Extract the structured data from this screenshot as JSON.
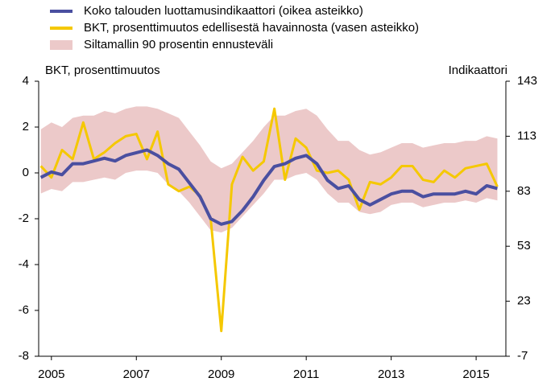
{
  "chart_data": {
    "type": "line",
    "y_label": "BKT, prosenttimuutos",
    "y2_label": "Indikaattori",
    "x": [
      2004.75,
      2005,
      2005.25,
      2005.5,
      2005.75,
      2006,
      2006.25,
      2006.5,
      2006.75,
      2007,
      2007.25,
      2007.5,
      2007.75,
      2008,
      2008.25,
      2008.5,
      2008.75,
      2009,
      2009.25,
      2009.5,
      2009.75,
      2010,
      2010.25,
      2010.5,
      2010.75,
      2011,
      2011.25,
      2011.5,
      2011.75,
      2012,
      2012.25,
      2012.5,
      2012.75,
      2013,
      2013.25,
      2013.5,
      2013.75,
      2014,
      2014.25,
      2014.5,
      2014.75,
      2015,
      2015.25,
      2015.5
    ],
    "xlim": [
      2004.7,
      2015.7
    ],
    "xticks": [
      2005,
      2007,
      2009,
      2011,
      2013,
      2015
    ],
    "ylim": [
      -8,
      4
    ],
    "yticks": [
      -8,
      -6,
      -4,
      -2,
      0,
      2,
      4
    ],
    "y2lim": [
      -7,
      143
    ],
    "y2ticks": [
      -7,
      23,
      53,
      83,
      113,
      143
    ],
    "series": [
      {
        "name": "Koko talouden luottamusindikaattori (oikea asteikko)",
        "color": "#4a4fa0",
        "axis": "y2",
        "values": [
          90.5,
          93.5,
          92,
          98,
          98,
          99.5,
          101,
          99.5,
          102.5,
          104,
          105.5,
          102.5,
          98,
          95,
          87.5,
          80,
          68,
          65,
          66.5,
          72.5,
          80,
          89,
          96.5,
          98,
          101,
          102.5,
          98,
          89,
          84.5,
          86,
          78.5,
          75.5,
          78.5,
          81.5,
          83,
          83,
          80,
          81.5,
          81.5,
          81.5,
          83,
          81.5,
          86,
          84.5
        ]
      },
      {
        "name": "BKT, prosenttimuutos edellisestä havainnosta (vasen asteikko)",
        "color": "#f5c800",
        "values": [
          0.3,
          -0.2,
          1.0,
          0.6,
          2.2,
          0.6,
          0.9,
          1.3,
          1.6,
          1.7,
          0.6,
          1.8,
          -0.5,
          -0.8,
          -0.6,
          -1.0,
          -2.0,
          -6.9,
          -0.5,
          0.7,
          0.1,
          0.5,
          2.8,
          -0.3,
          1.5,
          1.1,
          0.1,
          0.0,
          0.1,
          -0.3,
          -1.6,
          -0.4,
          -0.5,
          -0.2,
          0.3,
          0.3,
          -0.3,
          -0.4,
          0.1,
          -0.2,
          0.2,
          0.3,
          0.4,
          -0.6
        ]
      },
      {
        "name": "Siltamallin 90 prosentin ennusteväli",
        "color": "#ecc9c9",
        "upper": [
          1.9,
          2.2,
          2.0,
          2.4,
          2.5,
          2.5,
          2.7,
          2.6,
          2.8,
          2.9,
          2.9,
          2.8,
          2.6,
          2.4,
          1.8,
          1.2,
          0.5,
          0.2,
          0.4,
          0.9,
          1.4,
          2.0,
          2.5,
          2.5,
          2.7,
          2.8,
          2.5,
          1.9,
          1.4,
          1.4,
          1.0,
          0.8,
          0.9,
          1.1,
          1.3,
          1.3,
          1.1,
          1.2,
          1.3,
          1.3,
          1.4,
          1.4,
          1.6,
          1.5
        ],
        "lower": [
          -0.9,
          -0.7,
          -0.8,
          -0.4,
          -0.4,
          -0.3,
          -0.2,
          -0.3,
          0.0,
          0.1,
          0.1,
          0.0,
          -0.5,
          -0.8,
          -1.3,
          -1.9,
          -2.5,
          -2.6,
          -2.4,
          -1.9,
          -1.4,
          -0.9,
          -0.3,
          -0.3,
          -0.1,
          0.0,
          -0.3,
          -0.9,
          -1.3,
          -1.3,
          -1.7,
          -1.8,
          -1.7,
          -1.4,
          -1.3,
          -1.3,
          -1.5,
          -1.4,
          -1.3,
          -1.3,
          -1.2,
          -1.3,
          -1.1,
          -1.2
        ]
      }
    ]
  }
}
